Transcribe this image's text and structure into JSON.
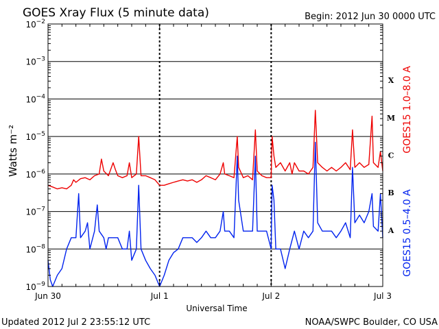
{
  "header": {
    "title": "GOES Xray Flux (5 minute data)",
    "begin": "Begin:  2012 Jun 30 0000 UTC"
  },
  "footer": {
    "updated": "Updated 2012 Jul  2 23:55:12 UTC",
    "credit": "NOAA/SWPC Boulder, CO USA"
  },
  "chart_data": {
    "type": "line",
    "title": "GOES Xray Flux (5 minute data)",
    "xlabel": "Universal Time",
    "ylabel": "Watts m⁻²",
    "yscale": "log",
    "ylim": [
      1e-09,
      0.01
    ],
    "xlim": [
      0,
      72
    ],
    "x_unit": "hours since 2012 Jun 30 0000 UTC",
    "x_ticks": [
      {
        "x": 0,
        "label": "Jun 30"
      },
      {
        "x": 24,
        "label": "Jul 1"
      },
      {
        "x": 48,
        "label": "Jul 2"
      },
      {
        "x": 72,
        "label": "Jul 3"
      }
    ],
    "y_ticks": [
      {
        "base": "10",
        "exp": "−2",
        "value": 0.01
      },
      {
        "base": "10",
        "exp": "−3",
        "value": 0.001
      },
      {
        "base": "10",
        "exp": "−4",
        "value": 0.0001
      },
      {
        "base": "10",
        "exp": "−5",
        "value": 1e-05
      },
      {
        "base": "10",
        "exp": "−6",
        "value": 1e-06
      },
      {
        "base": "10",
        "exp": "−7",
        "value": 1e-07
      },
      {
        "base": "10",
        "exp": "−8",
        "value": 1e-08
      },
      {
        "base": "10",
        "exp": "−9",
        "value": 1e-09
      }
    ],
    "flare_classes": [
      {
        "label": "X",
        "value": 0.000316
      },
      {
        "label": "M",
        "value": 3.16e-05
      },
      {
        "label": "C",
        "value": 3.16e-06
      },
      {
        "label": "B",
        "value": 3.16e-07
      },
      {
        "label": "A",
        "value": 3.16e-08
      }
    ],
    "grid": true,
    "series": [
      {
        "name": "GOES15 1.0–8.0 A",
        "color": "#ee0000",
        "points": [
          [
            0,
            5e-07
          ],
          [
            1,
            4.5e-07
          ],
          [
            2,
            4e-07
          ],
          [
            3,
            4.3e-07
          ],
          [
            4,
            4e-07
          ],
          [
            5,
            5e-07
          ],
          [
            5.5,
            7e-07
          ],
          [
            6,
            6e-07
          ],
          [
            7,
            7.5e-07
          ],
          [
            8,
            8e-07
          ],
          [
            9,
            7e-07
          ],
          [
            10,
            9e-07
          ],
          [
            11,
            1e-06
          ],
          [
            11.5,
            2.5e-06
          ],
          [
            12,
            1.2e-06
          ],
          [
            13,
            9e-07
          ],
          [
            14,
            2e-06
          ],
          [
            14.5,
            1.3e-06
          ],
          [
            15,
            9e-07
          ],
          [
            16,
            8e-07
          ],
          [
            17,
            9e-07
          ],
          [
            17.5,
            2e-06
          ],
          [
            18,
            8e-07
          ],
          [
            19,
            1e-06
          ],
          [
            19.5,
            1e-05
          ],
          [
            20,
            9e-07
          ],
          [
            21,
            9e-07
          ],
          [
            22,
            8e-07
          ],
          [
            23,
            7e-07
          ],
          [
            24,
            5e-07
          ],
          [
            25,
            5e-07
          ],
          [
            26,
            5.5e-07
          ],
          [
            27,
            6e-07
          ],
          [
            28,
            6.5e-07
          ],
          [
            29,
            7e-07
          ],
          [
            30,
            6.5e-07
          ],
          [
            31,
            7e-07
          ],
          [
            32,
            6e-07
          ],
          [
            33,
            7e-07
          ],
          [
            34,
            9e-07
          ],
          [
            35,
            8e-07
          ],
          [
            36,
            7e-07
          ],
          [
            37,
            1e-06
          ],
          [
            37.7,
            2e-06
          ],
          [
            38,
            1e-06
          ],
          [
            39,
            9e-07
          ],
          [
            40,
            8e-07
          ],
          [
            40.7,
            1e-05
          ],
          [
            41,
            1.5e-06
          ],
          [
            42,
            8e-07
          ],
          [
            43,
            9e-07
          ],
          [
            44,
            7e-07
          ],
          [
            44.6,
            1.5e-05
          ],
          [
            45,
            1.2e-06
          ],
          [
            46,
            9e-07
          ],
          [
            47,
            8e-07
          ],
          [
            48,
            8e-07
          ],
          [
            48.2,
            1e-05
          ],
          [
            48.6,
            3e-06
          ],
          [
            49,
            1.5e-06
          ],
          [
            50,
            2e-06
          ],
          [
            51,
            1.2e-06
          ],
          [
            52,
            2e-06
          ],
          [
            52.5,
            1e-06
          ],
          [
            53,
            2e-06
          ],
          [
            54,
            1.2e-06
          ],
          [
            55,
            1.2e-06
          ],
          [
            56,
            1e-06
          ],
          [
            57,
            1.5e-06
          ],
          [
            57.5,
            5e-05
          ],
          [
            58,
            2e-06
          ],
          [
            59,
            1.5e-06
          ],
          [
            60,
            1.2e-06
          ],
          [
            61,
            1.5e-06
          ],
          [
            62,
            1.2e-06
          ],
          [
            63,
            1.5e-06
          ],
          [
            64,
            2e-06
          ],
          [
            65,
            1.3e-06
          ],
          [
            65.5,
            1.5e-05
          ],
          [
            66,
            1.5e-06
          ],
          [
            67,
            2e-06
          ],
          [
            68,
            1.5e-06
          ],
          [
            69,
            1.8e-06
          ],
          [
            69.7,
            3.5e-05
          ],
          [
            70,
            2e-06
          ],
          [
            71,
            1.5e-06
          ],
          [
            71.5,
            4e-06
          ],
          [
            72,
            1.2e-06
          ]
        ]
      },
      {
        "name": "GOES15 0.5–4.0 A",
        "color": "#0022ee",
        "points": [
          [
            0,
            5e-09
          ],
          [
            0.5,
            1.5e-09
          ],
          [
            1,
            1e-09
          ],
          [
            2,
            2e-09
          ],
          [
            3,
            3e-09
          ],
          [
            4,
            1e-08
          ],
          [
            5,
            2e-08
          ],
          [
            6,
            2e-08
          ],
          [
            6.6,
            3e-07
          ],
          [
            7,
            2e-08
          ],
          [
            8,
            3e-08
          ],
          [
            8.5,
            5e-08
          ],
          [
            9,
            1e-08
          ],
          [
            10,
            3e-08
          ],
          [
            10.6,
            1.5e-07
          ],
          [
            11,
            3e-08
          ],
          [
            12,
            2e-08
          ],
          [
            12.5,
            1e-08
          ],
          [
            13,
            2e-08
          ],
          [
            14,
            2e-08
          ],
          [
            15,
            2e-08
          ],
          [
            16,
            1e-08
          ],
          [
            17,
            1e-08
          ],
          [
            17.5,
            3e-08
          ],
          [
            18,
            5e-09
          ],
          [
            19,
            1e-08
          ],
          [
            19.5,
            5e-07
          ],
          [
            20,
            1e-08
          ],
          [
            21,
            5e-09
          ],
          [
            22,
            3e-09
          ],
          [
            23,
            2e-09
          ],
          [
            24,
            1e-09
          ],
          [
            25,
            2e-09
          ],
          [
            26,
            5e-09
          ],
          [
            27,
            8e-09
          ],
          [
            28,
            1e-08
          ],
          [
            29,
            2e-08
          ],
          [
            30,
            2e-08
          ],
          [
            31,
            2e-08
          ],
          [
            32,
            1.5e-08
          ],
          [
            33,
            2e-08
          ],
          [
            34,
            3e-08
          ],
          [
            35,
            2e-08
          ],
          [
            36,
            2e-08
          ],
          [
            37,
            3e-08
          ],
          [
            37.7,
            1e-07
          ],
          [
            38,
            3e-08
          ],
          [
            39,
            3e-08
          ],
          [
            40,
            2e-08
          ],
          [
            40.7,
            3e-06
          ],
          [
            41,
            2e-07
          ],
          [
            42,
            3e-08
          ],
          [
            43,
            3e-08
          ],
          [
            44,
            3e-08
          ],
          [
            44.6,
            3e-06
          ],
          [
            45,
            3e-08
          ],
          [
            46,
            3e-08
          ],
          [
            47,
            3e-08
          ],
          [
            48,
            1e-08
          ],
          [
            48.2,
            5e-07
          ],
          [
            48.6,
            2e-07
          ],
          [
            49,
            1e-08
          ],
          [
            50,
            1e-08
          ],
          [
            51,
            3e-09
          ],
          [
            52,
            1e-08
          ],
          [
            53,
            3e-08
          ],
          [
            54,
            1e-08
          ],
          [
            55,
            3e-08
          ],
          [
            56,
            2e-08
          ],
          [
            57,
            3e-08
          ],
          [
            57.5,
            7e-06
          ],
          [
            58,
            5e-08
          ],
          [
            59,
            3e-08
          ],
          [
            60,
            3e-08
          ],
          [
            61,
            3e-08
          ],
          [
            62,
            2e-08
          ],
          [
            63,
            3e-08
          ],
          [
            64,
            5e-08
          ],
          [
            65,
            2e-08
          ],
          [
            65.5,
            1.5e-06
          ],
          [
            66,
            5e-08
          ],
          [
            67,
            8e-08
          ],
          [
            68,
            5e-08
          ],
          [
            69,
            1e-07
          ],
          [
            69.7,
            3e-07
          ],
          [
            70,
            4e-08
          ],
          [
            71,
            3e-08
          ],
          [
            71.5,
            3e-07
          ],
          [
            72,
            2e-08
          ]
        ]
      }
    ]
  }
}
